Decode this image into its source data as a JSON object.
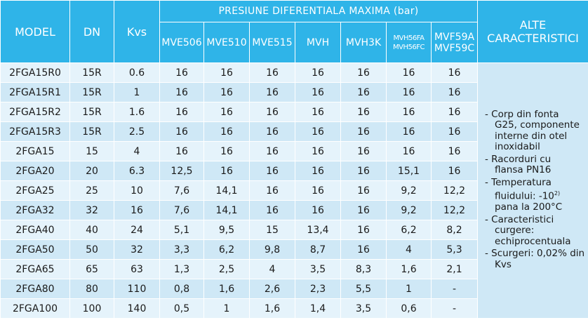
{
  "headers": {
    "model": "MODEL",
    "dn": "DN",
    "kvs": "Kvs",
    "group": "PRESIUNE DIFERENTIALA MAXIMA  (bar)",
    "other_line1": "ALTE",
    "other_line2": "CARACTERISTICI",
    "sub": {
      "c1": "MVE506",
      "c2": "MVE510",
      "c3": "MVE515",
      "c4": "MVH",
      "c5": "MVH3K",
      "c6a": "MVH56FA",
      "c6b": "MVH56FC",
      "c7a": "MVF59A",
      "c7b": "MVF59C"
    }
  },
  "rows": [
    {
      "model": "2FGA15R0",
      "dn": "15R",
      "kvs": "0.6",
      "v1": "16",
      "v2": "16",
      "v3": "16",
      "v4": "16",
      "v5": "16",
      "v6": "16",
      "v7": "16"
    },
    {
      "model": "2FGA15R1",
      "dn": "15R",
      "kvs": "1",
      "v1": "16",
      "v2": "16",
      "v3": "16",
      "v4": "16",
      "v5": "16",
      "v6": "16",
      "v7": "16"
    },
    {
      "model": "2FGA15R2",
      "dn": "15R",
      "kvs": "1.6",
      "v1": "16",
      "v2": "16",
      "v3": "16",
      "v4": "16",
      "v5": "16",
      "v6": "16",
      "v7": "16"
    },
    {
      "model": "2FGA15R3",
      "dn": "15R",
      "kvs": "2.5",
      "v1": "16",
      "v2": "16",
      "v3": "16",
      "v4": "16",
      "v5": "16",
      "v6": "16",
      "v7": "16"
    },
    {
      "model": "2FGA15",
      "dn": "15",
      "kvs": "4",
      "v1": "16",
      "v2": "16",
      "v3": "16",
      "v4": "16",
      "v5": "16",
      "v6": "16",
      "v7": "16"
    },
    {
      "model": "2FGA20",
      "dn": "20",
      "kvs": "6.3",
      "v1": "12,5",
      "v2": "16",
      "v3": "16",
      "v4": "16",
      "v5": "16",
      "v6": "15,1",
      "v7": "16"
    },
    {
      "model": "2FGA25",
      "dn": "25",
      "kvs": "10",
      "v1": "7,6",
      "v2": "14,1",
      "v3": "16",
      "v4": "16",
      "v5": "16",
      "v6": "9,2",
      "v7": "12,2"
    },
    {
      "model": "2FGA32",
      "dn": "32",
      "kvs": "16",
      "v1": "7,6",
      "v2": "14,1",
      "v3": "16",
      "v4": "16",
      "v5": "16",
      "v6": "9,2",
      "v7": "12,2"
    },
    {
      "model": "2FGA40",
      "dn": "40",
      "kvs": "24",
      "v1": "5,1",
      "v2": "9,5",
      "v3": "15",
      "v4": "13,4",
      "v5": "16",
      "v6": "6,2",
      "v7": "8,2"
    },
    {
      "model": "2FGA50",
      "dn": "50",
      "kvs": "32",
      "v1": "3,3",
      "v2": "6,2",
      "v3": "9,8",
      "v4": "8,7",
      "v5": "16",
      "v6": "4",
      "v7": "5,3"
    },
    {
      "model": "2FGA65",
      "dn": "65",
      "kvs": "63",
      "v1": "1,3",
      "v2": "2,5",
      "v3": "4",
      "v4": "3,5",
      "v5": "8,3",
      "v6": "1,6",
      "v7": "2,1"
    },
    {
      "model": "2FGA80",
      "dn": "80",
      "kvs": "110",
      "v1": "0,8",
      "v2": "1,6",
      "v3": "2,6",
      "v4": "2,3",
      "v5": "5,5",
      "v6": "1",
      "v7": "-"
    },
    {
      "model": "2FGA100",
      "dn": "100",
      "kvs": "140",
      "v1": "0,5",
      "v2": "1",
      "v3": "1,6",
      "v4": "1,4",
      "v5": "3,5",
      "v6": "0,6",
      "v7": "-"
    }
  ],
  "features": {
    "f1a": "- Corp din fonta",
    "f1b": "G25, componente interne din otel inoxidabil",
    "f2a": "- Racorduri cu",
    "f2b": "flansa PN16",
    "f3a": "- Temperatura",
    "f3b": "fluidului: -10",
    "f3sup": "2)",
    "f3c": " pana la 200°C",
    "f4a": "- Caracteristici",
    "f4b": "curgere: echiprocentuala",
    "f5a": "- Scurgeri: 0,02% din",
    "f5b": "Kvs"
  }
}
